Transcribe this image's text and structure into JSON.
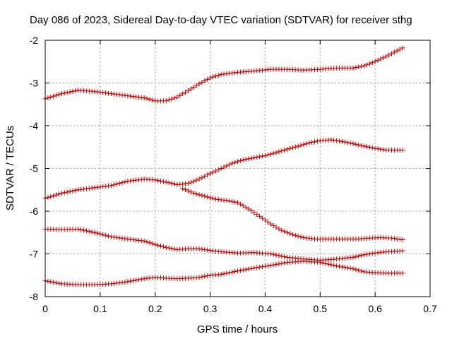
{
  "chart_data": {
    "type": "scatter",
    "title": "Day 086 of 2023, Sidereal Day-to-day VTEC variation (SDTVAR) for receiver sthg",
    "xlabel": "GPS time / hours",
    "ylabel": "SDTVAR / TECUs",
    "xlim": [
      0,
      0.7
    ],
    "ylim": [
      -8,
      -2
    ],
    "x_ticks": [
      "0",
      "0.1",
      "0.2",
      "0.3",
      "0.4",
      "0.5",
      "0.6",
      "0.7"
    ],
    "y_ticks": [
      "-8",
      "-7",
      "-6",
      "-5",
      "-4",
      "-3",
      "-2"
    ],
    "grid": true,
    "marker": "+",
    "colors": {
      "series": "#cc0000",
      "grid": "#a0a0a0",
      "axis": "#000000"
    },
    "series": [
      {
        "name": "series-1",
        "x": [
          0,
          0.03,
          0.06,
          0.09,
          0.12,
          0.15,
          0.18,
          0.2,
          0.22,
          0.24,
          0.26,
          0.28,
          0.3,
          0.32,
          0.35,
          0.38,
          0.41,
          0.44,
          0.47,
          0.5,
          0.53,
          0.56,
          0.58,
          0.6,
          0.62,
          0.65
        ],
        "y": [
          -3.37,
          -3.25,
          -3.17,
          -3.2,
          -3.25,
          -3.3,
          -3.35,
          -3.42,
          -3.42,
          -3.33,
          -3.18,
          -3.02,
          -2.88,
          -2.8,
          -2.75,
          -2.72,
          -2.68,
          -2.68,
          -2.7,
          -2.68,
          -2.65,
          -2.65,
          -2.6,
          -2.5,
          -2.38,
          -2.18
        ]
      },
      {
        "name": "series-2",
        "x": [
          0,
          0.03,
          0.06,
          0.09,
          0.12,
          0.15,
          0.18,
          0.2,
          0.22,
          0.24,
          0.26,
          0.28,
          0.3,
          0.32,
          0.34,
          0.36,
          0.38,
          0.4,
          0.42,
          0.44,
          0.46,
          0.48,
          0.5,
          0.52,
          0.54,
          0.56,
          0.58,
          0.6,
          0.62,
          0.65
        ],
        "y": [
          -5.7,
          -5.58,
          -5.5,
          -5.45,
          -5.4,
          -5.3,
          -5.25,
          -5.27,
          -5.32,
          -5.38,
          -5.35,
          -5.25,
          -5.12,
          -5.0,
          -4.88,
          -4.8,
          -4.75,
          -4.7,
          -4.63,
          -4.55,
          -4.48,
          -4.4,
          -4.35,
          -4.33,
          -4.37,
          -4.42,
          -4.48,
          -4.53,
          -4.57,
          -4.57
        ]
      },
      {
        "name": "series-3",
        "x": [
          0.25,
          0.27,
          0.29,
          0.31,
          0.33,
          0.35,
          0.37,
          0.39,
          0.41,
          0.43,
          0.45,
          0.47,
          0.49,
          0.51,
          0.53,
          0.55,
          0.57,
          0.59,
          0.61,
          0.63,
          0.65
        ],
        "y": [
          -5.47,
          -5.58,
          -5.65,
          -5.72,
          -5.75,
          -5.8,
          -5.95,
          -6.12,
          -6.3,
          -6.45,
          -6.55,
          -6.62,
          -6.65,
          -6.65,
          -6.65,
          -6.65,
          -6.65,
          -6.63,
          -6.62,
          -6.63,
          -6.67
        ]
      },
      {
        "name": "series-4",
        "x": [
          0,
          0.03,
          0.06,
          0.09,
          0.12,
          0.15,
          0.18,
          0.2,
          0.22,
          0.24,
          0.26,
          0.28,
          0.3,
          0.32,
          0.35,
          0.38,
          0.41,
          0.44,
          0.47,
          0.5,
          0.53,
          0.56,
          0.58,
          0.6,
          0.62,
          0.65
        ],
        "y": [
          -6.42,
          -6.43,
          -6.42,
          -6.5,
          -6.6,
          -6.65,
          -6.7,
          -6.78,
          -6.85,
          -6.9,
          -6.88,
          -6.88,
          -6.92,
          -6.95,
          -6.98,
          -6.97,
          -7.0,
          -7.08,
          -7.12,
          -7.15,
          -7.12,
          -7.08,
          -7.02,
          -6.98,
          -6.95,
          -6.93
        ]
      },
      {
        "name": "series-5",
        "x": [
          0,
          0.03,
          0.06,
          0.09,
          0.12,
          0.15,
          0.18,
          0.2,
          0.22,
          0.24,
          0.26,
          0.28,
          0.3,
          0.32,
          0.35,
          0.38,
          0.41,
          0.44,
          0.47,
          0.5,
          0.53,
          0.56,
          0.58,
          0.6,
          0.62,
          0.65
        ],
        "y": [
          -7.63,
          -7.7,
          -7.72,
          -7.72,
          -7.7,
          -7.65,
          -7.58,
          -7.55,
          -7.57,
          -7.58,
          -7.57,
          -7.55,
          -7.5,
          -7.48,
          -7.4,
          -7.33,
          -7.27,
          -7.2,
          -7.17,
          -7.2,
          -7.28,
          -7.35,
          -7.42,
          -7.44,
          -7.45,
          -7.45
        ]
      }
    ]
  }
}
